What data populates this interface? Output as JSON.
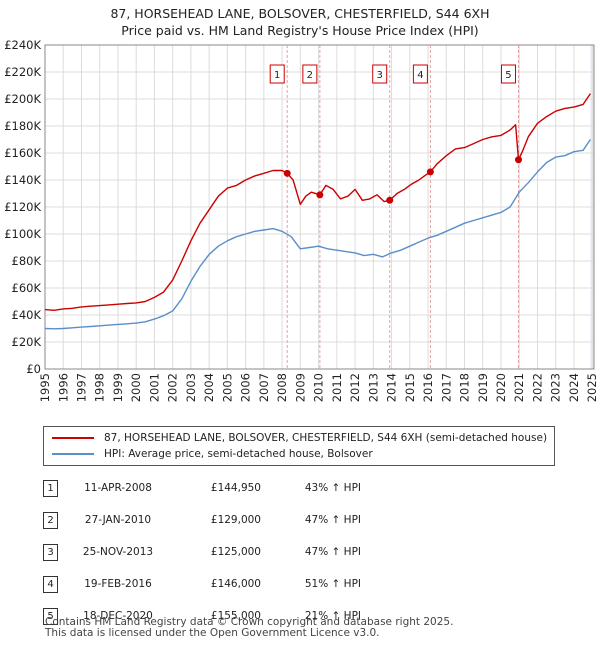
{
  "chart_data": {
    "type": "line",
    "title": "87, HORSEHEAD LANE, BOLSOVER, CHESTERFIELD, S44 6XH",
    "subtitle": "Price paid vs. HM Land Registry's House Price Index (HPI)",
    "xlabel": "",
    "ylabel": "",
    "xlim": [
      1995,
      2025.1
    ],
    "ylim": [
      0,
      240000
    ],
    "y_ticks": [
      0,
      20000,
      40000,
      60000,
      80000,
      100000,
      120000,
      140000,
      160000,
      180000,
      200000,
      220000,
      240000
    ],
    "y_tick_labels": [
      "£0",
      "£20K",
      "£40K",
      "£60K",
      "£80K",
      "£100K",
      "£120K",
      "£140K",
      "£160K",
      "£180K",
      "£200K",
      "£220K",
      "£240K"
    ],
    "x_ticks": [
      1995,
      1996,
      1997,
      1998,
      1999,
      2000,
      2001,
      2002,
      2003,
      2004,
      2005,
      2006,
      2007,
      2008,
      2009,
      2010,
      2011,
      2012,
      2013,
      2014,
      2015,
      2016,
      2017,
      2018,
      2019,
      2020,
      2021,
      2022,
      2023,
      2024,
      2025
    ],
    "grid": true,
    "series": [
      {
        "name": "87, HORSEHEAD LANE, BOLSOVER, CHESTERFIELD, S44 6XH (semi-detached house)",
        "color": "#cc0000",
        "x": [
          1995,
          1995.5,
          1996,
          1996.5,
          1997,
          1997.5,
          1998,
          1998.5,
          1999,
          1999.5,
          2000,
          2000.5,
          2001,
          2001.5,
          2002,
          2002.5,
          2003,
          2003.5,
          2004,
          2004.5,
          2005,
          2005.5,
          2006,
          2006.5,
          2007,
          2007.5,
          2008,
          2008.28,
          2008.6,
          2009,
          2009.3,
          2009.6,
          2010.07,
          2010.4,
          2010.8,
          2011.2,
          2011.6,
          2012,
          2012.4,
          2012.8,
          2013.2,
          2013.6,
          2013.9,
          2014.3,
          2014.7,
          2015.1,
          2015.5,
          2015.8,
          2016.13,
          2016.5,
          2017,
          2017.5,
          2018,
          2018.5,
          2019,
          2019.5,
          2020,
          2020.5,
          2020.8,
          2020.96,
          2021.2,
          2021.5,
          2022,
          2022.5,
          2023,
          2023.5,
          2024,
          2024.5,
          2024.9
        ],
        "y": [
          44000,
          43500,
          44500,
          45000,
          46000,
          46500,
          47000,
          47500,
          48000,
          48500,
          49000,
          50000,
          53000,
          57000,
          66000,
          80000,
          95000,
          108000,
          118000,
          128000,
          134000,
          136000,
          140000,
          143000,
          145000,
          147000,
          147000,
          144950,
          140000,
          122000,
          128000,
          131000,
          129000,
          136000,
          133000,
          126000,
          128000,
          133000,
          125000,
          126000,
          129000,
          124000,
          125000,
          130000,
          133000,
          137000,
          140000,
          143000,
          146000,
          152000,
          158000,
          163000,
          164000,
          167000,
          170000,
          172000,
          173000,
          177000,
          181000,
          155000,
          162000,
          172000,
          182000,
          187000,
          191000,
          193000,
          194000,
          196000,
          204000
        ]
      },
      {
        "name": "HPI: Average price, semi-detached house, Bolsover",
        "color": "#5b8ec9",
        "x": [
          1995,
          1995.5,
          1996,
          1996.5,
          1997,
          1997.5,
          1998,
          1998.5,
          1999,
          1999.5,
          2000,
          2000.5,
          2001,
          2001.5,
          2002,
          2002.5,
          2003,
          2003.5,
          2004,
          2004.5,
          2005,
          2005.5,
          2006,
          2006.5,
          2007,
          2007.5,
          2008,
          2008.5,
          2009,
          2009.5,
          2010,
          2010.5,
          2011,
          2011.5,
          2012,
          2012.5,
          2013,
          2013.5,
          2014,
          2014.5,
          2015,
          2015.5,
          2016,
          2016.5,
          2017,
          2017.5,
          2018,
          2018.5,
          2019,
          2019.5,
          2020,
          2020.5,
          2021,
          2021.5,
          2022,
          2022.5,
          2023,
          2023.5,
          2024,
          2024.5,
          2024.9
        ],
        "y": [
          30000,
          29800,
          30000,
          30500,
          31000,
          31500,
          32000,
          32500,
          33000,
          33500,
          34000,
          35000,
          37000,
          39500,
          43000,
          52000,
          65000,
          76000,
          85000,
          91000,
          95000,
          98000,
          100000,
          102000,
          103000,
          104000,
          102000,
          98000,
          89000,
          90000,
          91000,
          89000,
          88000,
          87000,
          86000,
          84000,
          85000,
          83000,
          86000,
          88000,
          91000,
          94000,
          97000,
          99000,
          102000,
          105000,
          108000,
          110000,
          112000,
          114000,
          116000,
          120000,
          131000,
          138000,
          146000,
          153000,
          157000,
          158000,
          161000,
          162000,
          170000
        ]
      }
    ],
    "sales": [
      {
        "id": "1",
        "x": 2008.28,
        "price": 144950
      },
      {
        "id": "2",
        "x": 2010.07,
        "price": 129000
      },
      {
        "id": "3",
        "x": 2013.9,
        "price": 125000
      },
      {
        "id": "4",
        "x": 2016.13,
        "price": 146000
      },
      {
        "id": "5",
        "x": 2020.96,
        "price": 155000
      }
    ]
  },
  "legend": {
    "property_label": "87, HORSEHEAD LANE, BOLSOVER, CHESTERFIELD, S44 6XH (semi-detached house)",
    "hpi_label": "HPI: Average price, semi-detached house, Bolsover"
  },
  "table": [
    {
      "num": "1",
      "date": "11-APR-2008",
      "price": "£144,950",
      "hpi": "43% ↑ HPI"
    },
    {
      "num": "2",
      "date": "27-JAN-2010",
      "price": "£129,000",
      "hpi": "47% ↑ HPI"
    },
    {
      "num": "3",
      "date": "25-NOV-2013",
      "price": "£125,000",
      "hpi": "47% ↑ HPI"
    },
    {
      "num": "4",
      "date": "19-FEB-2016",
      "price": "£146,000",
      "hpi": "51% ↑ HPI"
    },
    {
      "num": "5",
      "date": "18-DEC-2020",
      "price": "£155,000",
      "hpi": "21% ↑ HPI"
    }
  ],
  "footer": {
    "line1": "Contains HM Land Registry data © Crown copyright and database right 2025.",
    "line2": "This data is licensed under the Open Government Licence v3.0."
  },
  "colors": {
    "property": "#cc0000",
    "hpi": "#5b8ec9",
    "vline": "#e8a0a0",
    "shade": "#e8eef8",
    "grid": "#dcdcdc"
  }
}
